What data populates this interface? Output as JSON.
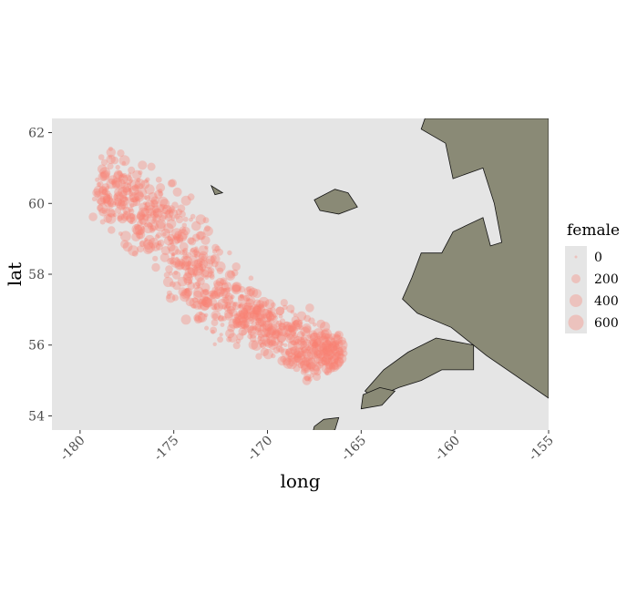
{
  "colors": {
    "panel_background": "#e5e5e5",
    "point": "#fa8072",
    "land_fill": "#8a8a76",
    "land_stroke": "#111111",
    "tick_text": "#4d4d4d"
  },
  "chart_data": {
    "type": "scatter",
    "title": "",
    "xlabel": "long",
    "ylabel": "lat",
    "xlim": [
      -181.5,
      -155
    ],
    "ylim": [
      53.6,
      62.4
    ],
    "x_ticks": [
      -180,
      -175,
      -170,
      -165,
      -160,
      -155
    ],
    "x_tick_labels": [
      "-180",
      "-175",
      "-170",
      "-165",
      "-160",
      "-155"
    ],
    "y_ticks": [
      54,
      56,
      58,
      60,
      62
    ],
    "y_tick_labels": [
      "54",
      "56",
      "58",
      "60",
      "62"
    ],
    "grid": false,
    "legend_position": "right",
    "size_legend": {
      "title": "female",
      "breaks": [
        0,
        200,
        400,
        600
      ],
      "labels": [
        "0",
        "200",
        "400",
        "600"
      ]
    },
    "point_cloud": {
      "centerline": [
        {
          "long": -179.0,
          "lat": 60.6
        },
        {
          "long": -176.5,
          "lat": 59.8
        },
        {
          "long": -174.5,
          "lat": 58.6
        },
        {
          "long": -172.8,
          "lat": 57.3
        },
        {
          "long": -170.5,
          "lat": 56.7
        },
        {
          "long": -168.0,
          "lat": 56.0
        },
        {
          "long": -166.0,
          "lat": 55.7
        }
      ],
      "half_width_deg": [
        0.5,
        0.6,
        0.7,
        0.6,
        0.35,
        0.45,
        0.25
      ]
    },
    "land": {
      "alaska_mainland": [
        [
          -161.6,
          62.4
        ],
        [
          -155,
          62.4
        ],
        [
          -155,
          54.5
        ],
        [
          -158.3,
          55.7
        ],
        [
          -160.2,
          56.5
        ],
        [
          -162.0,
          56.9
        ],
        [
          -162.8,
          57.3
        ],
        [
          -162.3,
          57.9
        ],
        [
          -161.8,
          58.6
        ],
        [
          -160.7,
          58.6
        ],
        [
          -160.1,
          59.2
        ],
        [
          -158.5,
          59.6
        ],
        [
          -158.1,
          58.8
        ],
        [
          -157.5,
          58.9
        ],
        [
          -157.9,
          60.0
        ],
        [
          -158.5,
          61.0
        ],
        [
          -160.1,
          60.7
        ],
        [
          -160.5,
          61.7
        ],
        [
          -161.8,
          62.1
        ]
      ],
      "alaska_peninsula": [
        [
          -159.0,
          55.3
        ],
        [
          -160.7,
          55.3
        ],
        [
          -161.8,
          55.0
        ],
        [
          -163.0,
          54.8
        ],
        [
          -164.3,
          54.5
        ],
        [
          -164.8,
          54.7
        ],
        [
          -163.8,
          55.3
        ],
        [
          -162.5,
          55.8
        ],
        [
          -161.0,
          56.2
        ],
        [
          -159.0,
          56.0
        ]
      ],
      "nunivak_island": [
        [
          -167.5,
          60.1
        ],
        [
          -166.4,
          60.4
        ],
        [
          -165.7,
          60.3
        ],
        [
          -165.2,
          59.9
        ],
        [
          -166.2,
          59.7
        ],
        [
          -167.2,
          59.8
        ]
      ],
      "st_matthew_island": [
        [
          -173.0,
          60.5
        ],
        [
          -172.4,
          60.3
        ],
        [
          -172.8,
          60.25
        ]
      ],
      "unimak_island": [
        [
          -165.0,
          54.2
        ],
        [
          -163.9,
          54.3
        ],
        [
          -163.2,
          54.7
        ],
        [
          -164.0,
          54.8
        ],
        [
          -164.9,
          54.6
        ]
      ],
      "unalaska_island": [
        [
          -167.6,
          53.5
        ],
        [
          -166.4,
          53.6
        ],
        [
          -166.2,
          53.95
        ],
        [
          -167.0,
          53.9
        ],
        [
          -167.5,
          53.7
        ]
      ]
    }
  }
}
